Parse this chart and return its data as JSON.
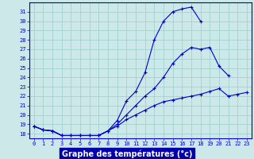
{
  "hours": [
    0,
    1,
    2,
    3,
    4,
    5,
    6,
    7,
    8,
    9,
    10,
    11,
    12,
    13,
    14,
    15,
    16,
    17,
    18,
    19,
    20,
    21,
    22,
    23
  ],
  "line1": [
    18.8,
    18.4,
    18.3,
    17.8,
    17.8,
    17.8,
    17.8,
    17.8,
    18.3,
    19.4,
    21.5,
    22.5,
    24.5,
    28.0,
    30.0,
    31.0,
    31.3,
    31.5,
    30.0,
    null,
    null,
    null,
    null,
    null
  ],
  "line2": [
    18.8,
    18.4,
    18.3,
    17.8,
    17.8,
    17.8,
    17.8,
    17.8,
    18.3,
    19.0,
    20.0,
    21.0,
    22.0,
    22.8,
    24.0,
    25.5,
    26.5,
    27.2,
    27.0,
    27.2,
    25.2,
    24.2,
    null,
    null
  ],
  "line3": [
    18.8,
    18.4,
    18.3,
    17.8,
    17.8,
    17.8,
    17.8,
    17.8,
    18.3,
    18.8,
    19.5,
    20.0,
    20.5,
    21.0,
    21.4,
    21.6,
    21.8,
    22.0,
    22.2,
    22.5,
    22.8,
    22.0,
    22.2,
    22.4
  ],
  "ylim_min": 17.5,
  "ylim_max": 32.0,
  "yticks": [
    18,
    19,
    20,
    21,
    22,
    23,
    24,
    25,
    26,
    27,
    28,
    29,
    30,
    31
  ],
  "line_color": "#0000cc",
  "bg_color": "#cce8e8",
  "grid_color": "#99cccc",
  "xlabel": "Graphe des températures (°c)",
  "xlabel_bg": "#0000aa",
  "xlabel_color": "#ffffff",
  "tick_fontsize": 5,
  "xlabel_fontsize": 7
}
